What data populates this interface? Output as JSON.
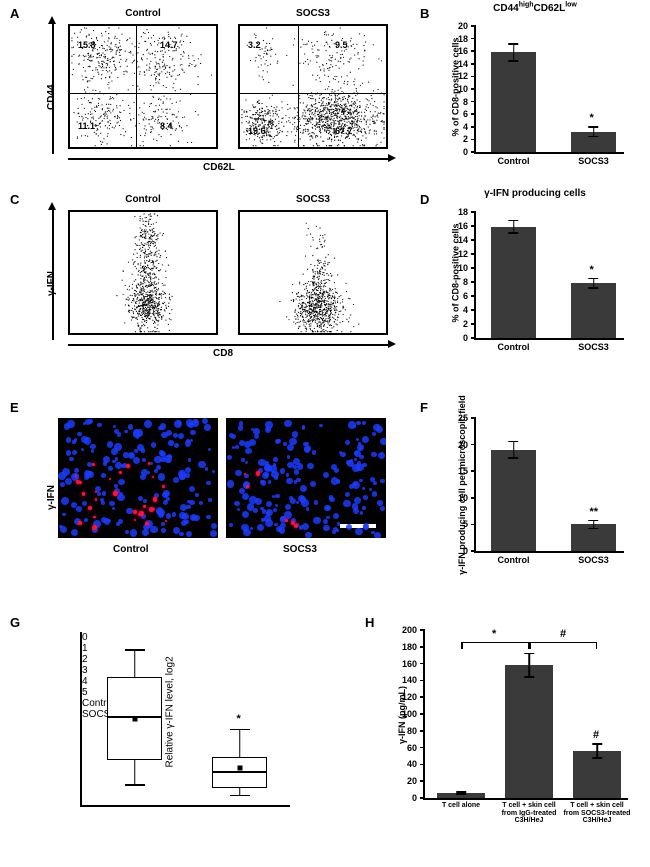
{
  "panelA": {
    "label": "A",
    "y_axis": "CD44",
    "x_axis": "CD62L",
    "plots": [
      {
        "title": "Control",
        "quad_v_pct": 45,
        "quad_h_pct": 55,
        "q_labels": {
          "tl": "15.8",
          "tr": "14.7",
          "bl": "11.1",
          "br": "8.4"
        }
      },
      {
        "title": "SOCS3",
        "quad_v_pct": 40,
        "quad_h_pct": 55,
        "q_labels": {
          "tl": "3.2",
          "tr": "9.5",
          "bl": "19.6",
          "br": "67.7"
        }
      }
    ]
  },
  "panelB": {
    "label": "B",
    "type": "bar",
    "title_html": "CD44<sup>high</sup>CD62L<sup>low</sup>",
    "ylabel": "% of CD8-positive cells",
    "ylim": [
      0,
      20
    ],
    "ytick_step": 2,
    "bar_color": "#3a3a3a",
    "categories": [
      "Control",
      "SOCS3"
    ],
    "values": [
      15.8,
      3.2
    ],
    "errors": [
      1.5,
      0.9
    ],
    "sig": [
      null,
      "*"
    ]
  },
  "panelC": {
    "label": "C",
    "y_axis": "γ-IFN",
    "x_axis": "CD8",
    "plots": [
      {
        "title": "Control"
      },
      {
        "title": "SOCS3"
      }
    ]
  },
  "panelD": {
    "label": "D",
    "type": "bar",
    "title": "γ-IFN producing cells",
    "ylabel": "% of CD8-positive cells",
    "ylim": [
      0,
      18
    ],
    "ytick_step": 2,
    "bar_color": "#3a3a3a",
    "categories": [
      "Control",
      "SOCS3"
    ],
    "values": [
      15.9,
      7.8
    ],
    "errors": [
      1.0,
      0.8
    ],
    "sig": [
      null,
      "*"
    ]
  },
  "panelE": {
    "label": "E",
    "y_axis": "γ-IFN",
    "titles": [
      "Control",
      "SOCS3"
    ],
    "nucleus_color": "#1a3cff",
    "signal_color": "#ff1040",
    "bg_color": "#000000",
    "scale_bar_color": "#ffffff"
  },
  "panelF": {
    "label": "F",
    "type": "bar",
    "ylabel": "γ-IFN producing cell per microscopic field",
    "ylim": [
      0,
      25
    ],
    "ytick_step": 5,
    "bar_color": "#3a3a3a",
    "categories": [
      "Control",
      "SOCS3"
    ],
    "values": [
      19,
      5
    ],
    "errors": [
      1.7,
      0.9
    ],
    "sig": [
      null,
      "**"
    ]
  },
  "panelG": {
    "label": "G",
    "type": "boxplot",
    "ylabel": "Relative γ-IFN level, log2",
    "ylim": [
      0,
      5
    ],
    "ytick_step": 1,
    "categories": [
      "Control",
      "SOCS3"
    ],
    "boxes": [
      {
        "min": 0.6,
        "q1": 1.3,
        "median": 2.6,
        "mean": 2.5,
        "q3": 3.7,
        "max": 4.5
      },
      {
        "min": 0.3,
        "q1": 0.5,
        "median": 1.0,
        "mean": 1.1,
        "q3": 1.4,
        "max": 2.2
      }
    ],
    "sig": [
      null,
      "*"
    ]
  },
  "panelH": {
    "label": "H",
    "type": "bar",
    "ylabel": "γ-IFN (pg/mL)",
    "ylim": [
      0,
      200
    ],
    "ytick_step": 20,
    "bar_color": "#3a3a3a",
    "categories": [
      "T cell alone",
      "T cell + skin cell from IgG-treated C3H/HeJ",
      "T cell + skin cell from SOCS3-treated C3H/HeJ"
    ],
    "values": [
      6,
      158,
      56
    ],
    "errors": [
      2,
      15,
      9
    ],
    "sig_over_bar": [
      null,
      null,
      "#"
    ],
    "brackets": [
      {
        "from": 0,
        "to": 1,
        "label": "*",
        "y": 186
      },
      {
        "from": 1,
        "to": 2,
        "label": "#",
        "y": 186
      }
    ]
  },
  "colors": {
    "bar": "#3a3a3a",
    "axis": "#000000",
    "bg": "#ffffff"
  }
}
